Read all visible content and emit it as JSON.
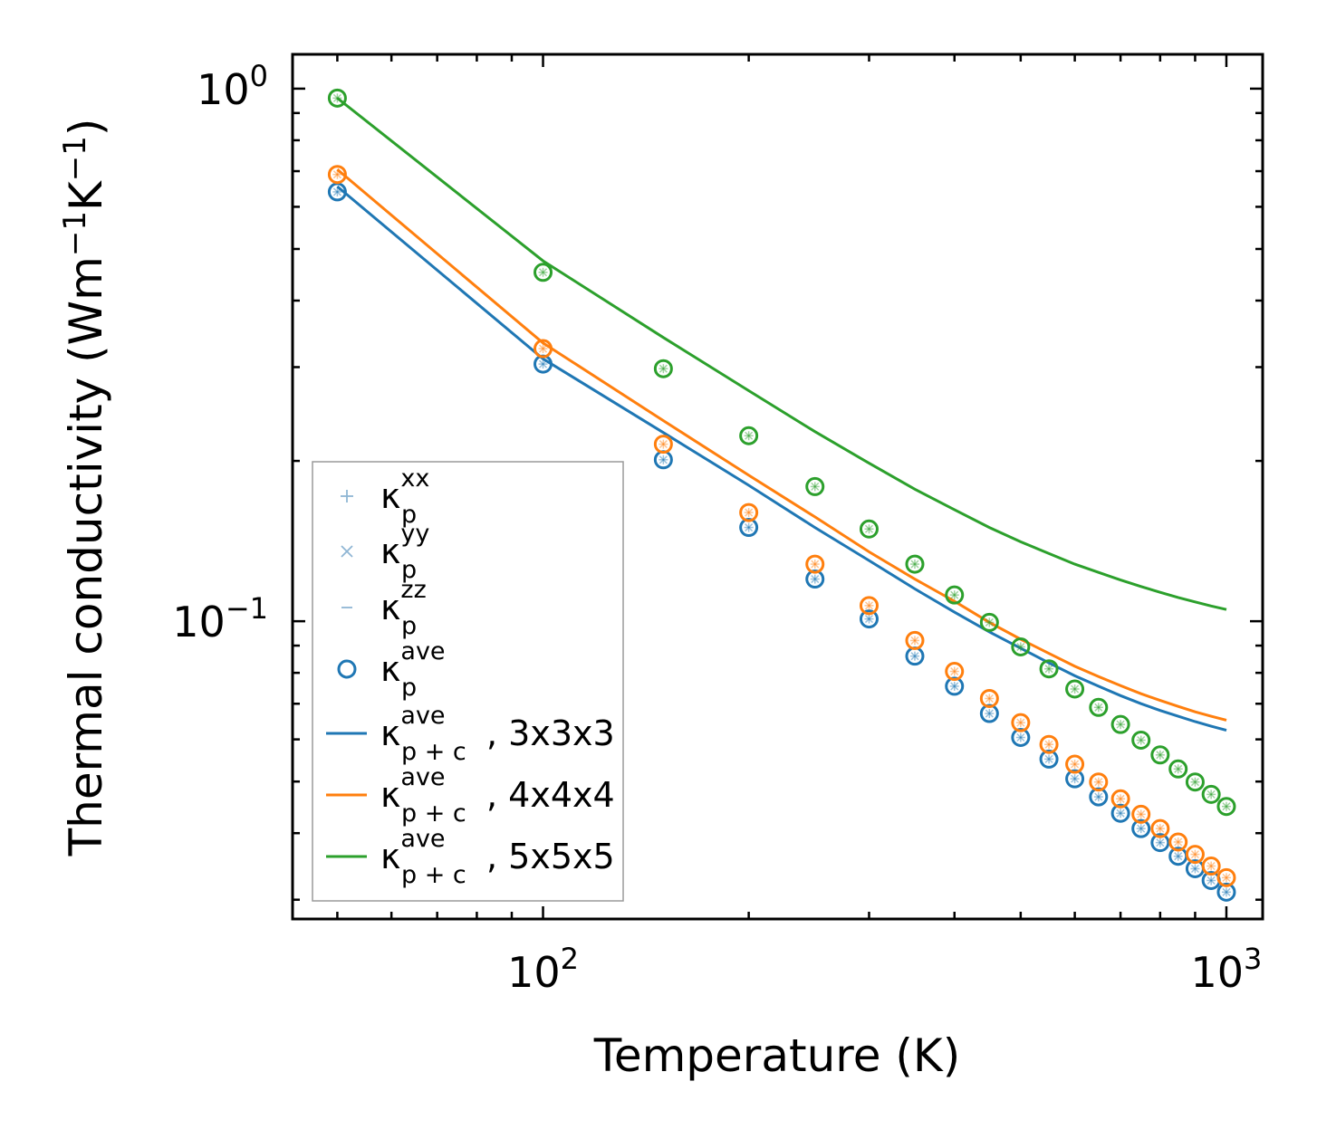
{
  "chart_data": {
    "type": "scatter",
    "xscale": "log",
    "yscale": "log",
    "xlim": [
      43,
      1130
    ],
    "ylim": [
      0.0276,
      1.16
    ],
    "xlabel": "Temperature (K)",
    "ylabel_main": "Thermal conductivity (Wm",
    "ylabel_sup1": "−1",
    "ylabel_mid": "K",
    "ylabel_sup2": "−1",
    "ylabel_end": ")",
    "x_major_ticks": [
      {
        "value": 100,
        "base": "10",
        "exp": "2"
      },
      {
        "value": 1000,
        "base": "10",
        "exp": "3"
      }
    ],
    "y_major_ticks": [
      {
        "value": 0.1,
        "base": "10",
        "exp": "−1"
      },
      {
        "value": 1.0,
        "base": "10",
        "exp": "0"
      }
    ],
    "temperatures": [
      50,
      100,
      150,
      200,
      250,
      300,
      350,
      400,
      450,
      500,
      550,
      600,
      650,
      700,
      750,
      800,
      850,
      900,
      950,
      1000
    ],
    "point_series": [
      {
        "name": "3x3x3",
        "color": "#1f77b4",
        "values": [
          0.64,
          0.304,
          0.201,
          0.15,
          0.12,
          0.101,
          0.086,
          0.0755,
          0.0671,
          0.0605,
          0.0551,
          0.0506,
          0.0468,
          0.0436,
          0.0408,
          0.0384,
          0.0362,
          0.0343,
          0.0326,
          0.031
        ]
      },
      {
        "name": "4x4x4",
        "color": "#ff7f0e",
        "values": [
          0.69,
          0.325,
          0.215,
          0.16,
          0.128,
          0.107,
          0.092,
          0.0805,
          0.0716,
          0.0645,
          0.0587,
          0.0539,
          0.0499,
          0.0464,
          0.0434,
          0.0408,
          0.0385,
          0.0365,
          0.0347,
          0.033
        ]
      },
      {
        "name": "5x5x5",
        "color": "#2ca02c",
        "values": [
          0.96,
          0.452,
          0.298,
          0.223,
          0.179,
          0.149,
          0.128,
          0.112,
          0.0995,
          0.0895,
          0.0814,
          0.0746,
          0.0689,
          0.064,
          0.0598,
          0.0561,
          0.0528,
          0.0499,
          0.0473,
          0.0449
        ]
      }
    ],
    "line_series": [
      {
        "name": "3x3x3",
        "color": "#1f77b4",
        "values": [
          0.655,
          0.311,
          0.226,
          0.18,
          0.15,
          0.13,
          0.115,
          0.104,
          0.0955,
          0.089,
          0.0835,
          0.079,
          0.0755,
          0.0725,
          0.07,
          0.068,
          0.0663,
          0.0648,
          0.0635,
          0.0624
        ]
      },
      {
        "name": "4x4x4",
        "color": "#ff7f0e",
        "values": [
          0.705,
          0.333,
          0.238,
          0.188,
          0.157,
          0.135,
          0.12,
          0.109,
          0.0995,
          0.0925,
          0.087,
          0.0823,
          0.0787,
          0.0757,
          0.0731,
          0.071,
          0.0692,
          0.0676,
          0.0663,
          0.0652
        ]
      },
      {
        "name": "5x5x5",
        "color": "#2ca02c",
        "values": [
          0.96,
          0.475,
          0.341,
          0.271,
          0.227,
          0.198,
          0.177,
          0.162,
          0.15,
          0.141,
          0.134,
          0.128,
          0.1235,
          0.1195,
          0.1162,
          0.1133,
          0.1108,
          0.1087,
          0.1068,
          0.1052
        ]
      }
    ],
    "legend": {
      "placement": "lower-left",
      "entries": [
        {
          "marker": "plus",
          "color": "#8fb6d4",
          "base": "κ",
          "sub": "p",
          "sup": "xx",
          "tail": ""
        },
        {
          "marker": "cross",
          "color": "#8fb6d4",
          "base": "κ",
          "sub": "p",
          "sup": "yy",
          "tail": ""
        },
        {
          "marker": "dash",
          "color": "#8fb6d4",
          "base": "κ",
          "sub": "p",
          "sup": "zz",
          "tail": ""
        },
        {
          "marker": "circle",
          "color": "#1f77b4",
          "base": "κ",
          "sub": "p",
          "sup": "ave",
          "tail": ""
        },
        {
          "marker": "line",
          "color": "#1f77b4",
          "base": "κ",
          "sub": "p + c",
          "sup": "ave",
          "tail": ", 3x3x3"
        },
        {
          "marker": "line",
          "color": "#ff7f0e",
          "base": "κ",
          "sub": "p + c",
          "sup": "ave",
          "tail": ", 4x4x4"
        },
        {
          "marker": "line",
          "color": "#2ca02c",
          "base": "κ",
          "sub": "p + c",
          "sup": "ave",
          "tail": ", 5x5x5"
        }
      ]
    }
  }
}
